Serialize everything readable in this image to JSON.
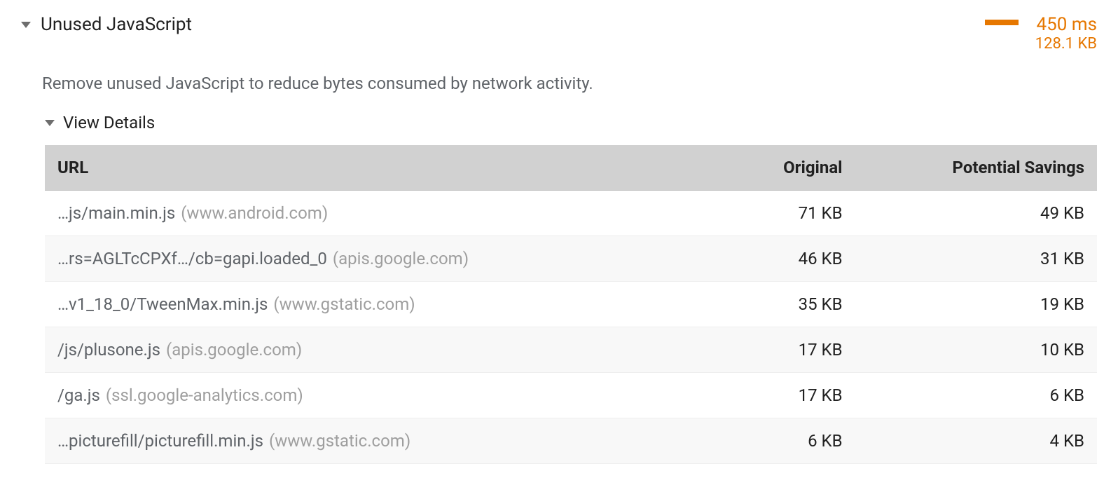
{
  "audit": {
    "title": "Unused JavaScript",
    "description": "Remove unused JavaScript to reduce bytes consumed by network activity.",
    "time_value": "450 ms",
    "size_value": "128.1 KB",
    "bar_color": "#e67700",
    "text_accent_color": "#e67700",
    "details_label": "View Details",
    "table": {
      "columns": {
        "url": "URL",
        "original": "Original",
        "savings": "Potential Savings"
      },
      "rows": [
        {
          "path": "…js/main.min.js",
          "domain": "(www.android.com)",
          "original": "71 KB",
          "savings": "49 KB"
        },
        {
          "path": "…rs=AGLTcCPXf…/cb=gapi.loaded_0",
          "domain": "(apis.google.com)",
          "original": "46 KB",
          "savings": "31 KB"
        },
        {
          "path": "…v1_18_0/TweenMax.min.js",
          "domain": "(www.gstatic.com)",
          "original": "35 KB",
          "savings": "19 KB"
        },
        {
          "path": "/js/plusone.js",
          "domain": "(apis.google.com)",
          "original": "17 KB",
          "savings": "10 KB"
        },
        {
          "path": "/ga.js",
          "domain": "(ssl.google-analytics.com)",
          "original": "17 KB",
          "savings": "6 KB"
        },
        {
          "path": "…picturefill/picturefill.min.js",
          "domain": "(www.gstatic.com)",
          "original": "6 KB",
          "savings": "4 KB"
        }
      ]
    }
  }
}
